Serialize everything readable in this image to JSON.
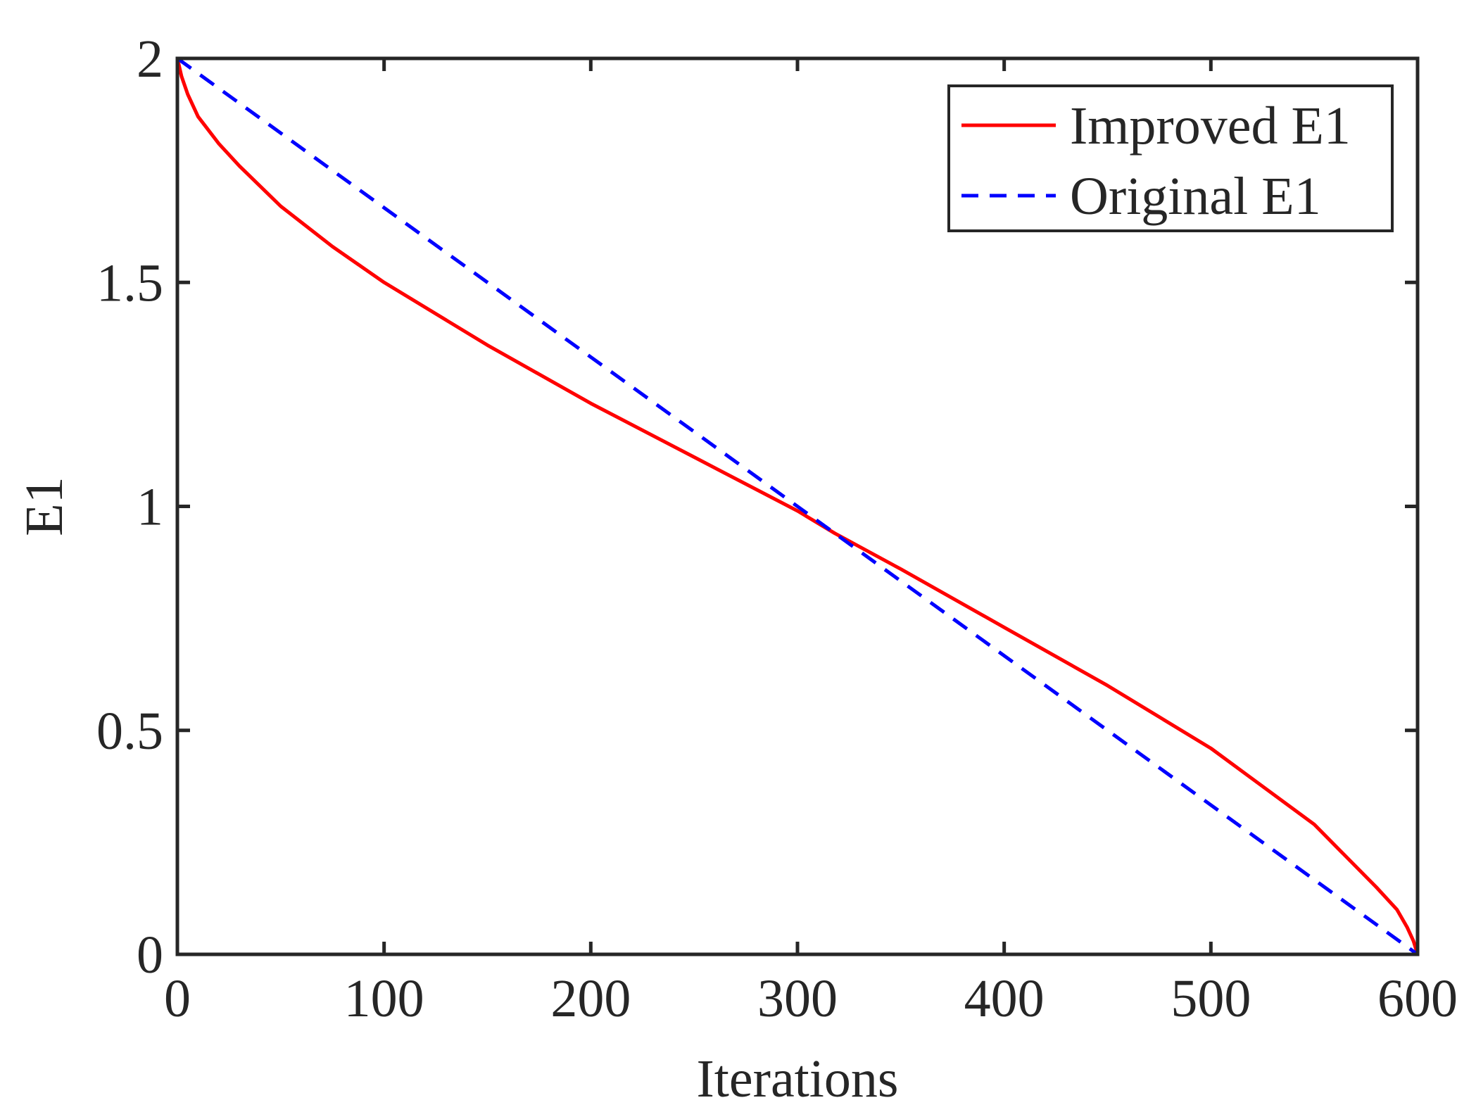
{
  "chart_data": {
    "type": "line",
    "title": "",
    "xlabel": "Iterations",
    "ylabel": "E1",
    "xlim": [
      0,
      600
    ],
    "ylim": [
      0,
      2
    ],
    "xticks": [
      0,
      100,
      200,
      300,
      400,
      500,
      600
    ],
    "xtick_labels": [
      "0",
      "100",
      "200",
      "300",
      "400",
      "500",
      "600"
    ],
    "yticks": [
      0,
      0.5,
      1,
      1.5,
      2
    ],
    "ytick_labels": [
      "0",
      "0.5",
      "1",
      "1.5",
      "2"
    ],
    "grid": false,
    "legend_position": "top-right",
    "series": [
      {
        "name": "Improved E1",
        "color": "#ff0000",
        "style": "solid",
        "x": [
          0,
          2,
          5,
          10,
          20,
          30,
          50,
          75,
          100,
          150,
          200,
          250,
          300,
          318,
          350,
          400,
          450,
          500,
          550,
          580,
          590,
          595,
          598,
          600
        ],
        "y": [
          2.0,
          1.96,
          1.92,
          1.87,
          1.81,
          1.76,
          1.67,
          1.58,
          1.5,
          1.36,
          1.23,
          1.11,
          0.99,
          0.94,
          0.86,
          0.73,
          0.6,
          0.46,
          0.29,
          0.15,
          0.1,
          0.06,
          0.03,
          0.0
        ]
      },
      {
        "name": "Original E1",
        "color": "#0000ff",
        "style": "dashed",
        "x": [
          0,
          600
        ],
        "y": [
          2.0,
          0.0
        ]
      }
    ]
  }
}
